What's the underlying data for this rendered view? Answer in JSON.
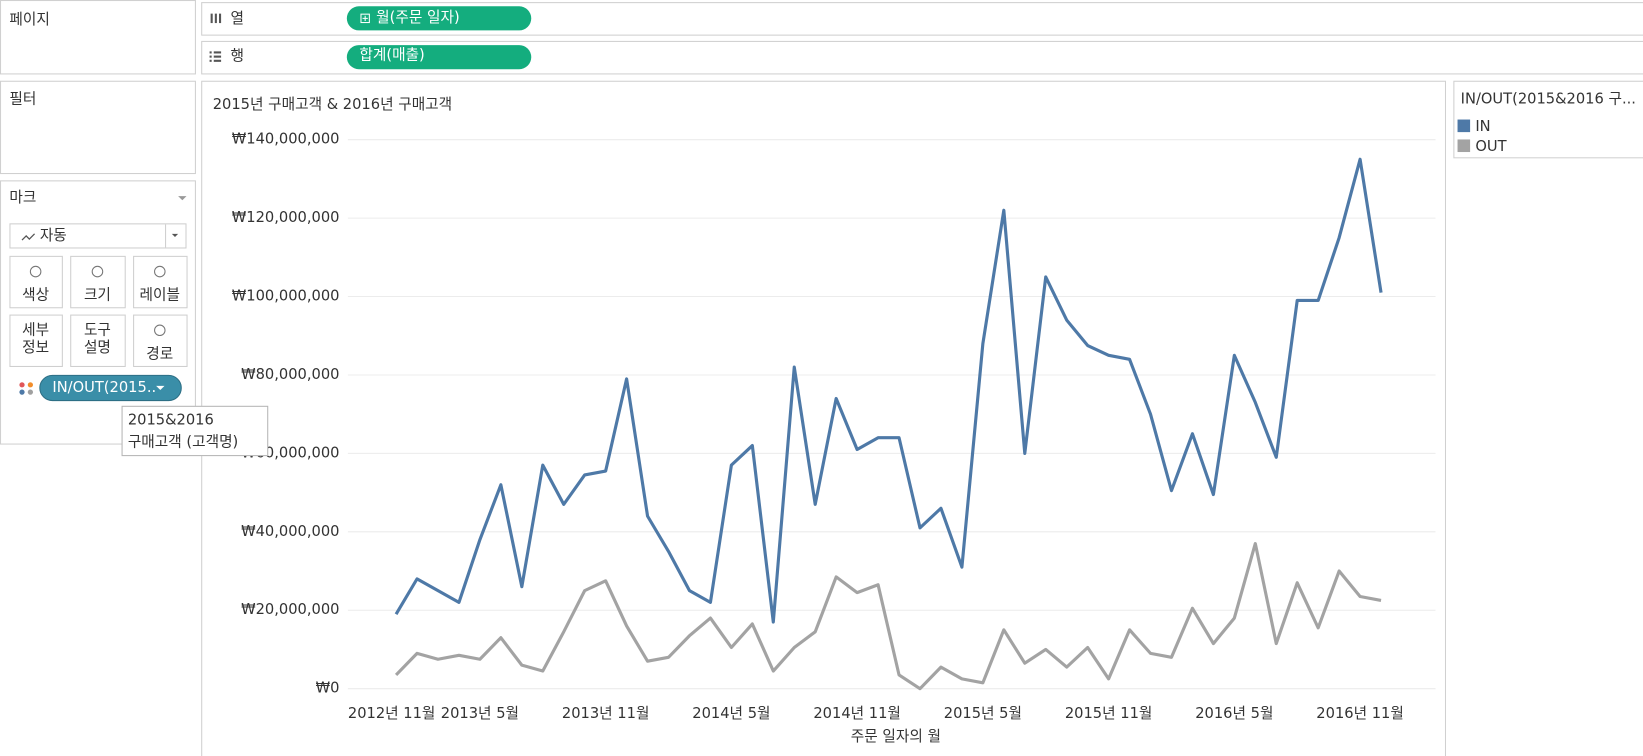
{
  "ui": {
    "pages_label": "페이지",
    "filters_label": "필터",
    "marks": {
      "title": "마크",
      "mark_type": "자동",
      "buttons": [
        [
          "색상"
        ],
        [
          "크기"
        ],
        [
          "레이블"
        ],
        [
          "세부",
          "정보"
        ],
        [
          "도구",
          "설명"
        ],
        [
          "경로"
        ]
      ],
      "pill": "IN/OUT(2015..",
      "tooltip": [
        "2015&2016",
        "구매고객 (고객명)"
      ]
    },
    "columns_shelf": {
      "label": "열",
      "pill": "월(주문 일자)"
    },
    "rows_shelf": {
      "label": "행",
      "pill": "합계(매출)"
    }
  },
  "chart_data": {
    "type": "line",
    "title": "2015년 구매고객 & 2016년 구매고객",
    "x_label": "주문 일자의 월",
    "legend_title": "IN/OUT(2015&2016 구...",
    "legend": "right",
    "categories": [
      "2012년 11월",
      null,
      null,
      null,
      null,
      null,
      "2013년 5월",
      null,
      null,
      null,
      null,
      null,
      "2013년 11월",
      null,
      null,
      null,
      null,
      null,
      "2014년 5월",
      null,
      null,
      null,
      null,
      null,
      "2014년 11월",
      null,
      null,
      null,
      null,
      null,
      "2015년 5월",
      null,
      null,
      null,
      null,
      null,
      "2015년 11월",
      null,
      null,
      null,
      null,
      null,
      "2016년 5월",
      null,
      null,
      null,
      null,
      null,
      "2016년 11월",
      null
    ],
    "series": [
      {
        "name": "IN",
        "color": "#4e79a7",
        "values": [
          null,
          null,
          19000000,
          28000000,
          25000000,
          22000000,
          38000000,
          52000000,
          26000000,
          57000000,
          47000000,
          54500000,
          55500000,
          79000000,
          44000000,
          35000000,
          25000000,
          22000000,
          57000000,
          62000000,
          17000000,
          82000000,
          47000000,
          74000000,
          61000000,
          64000000,
          64000000,
          41000000,
          46000000,
          31000000,
          88000000,
          122000000,
          60000000,
          105000000,
          94000000,
          87500000,
          85000000,
          84000000,
          70000000,
          50500000,
          65000000,
          49500000,
          85000000,
          73000000,
          59000000,
          99000000,
          99000000,
          115000000,
          135000000,
          101000000
        ]
      },
      {
        "name": "OUT",
        "color": "#a3a3a3",
        "values": [
          null,
          null,
          3500000,
          9000000,
          7500000,
          8500000,
          7500000,
          13000000,
          6000000,
          4500000,
          14500000,
          25000000,
          27500000,
          16000000,
          7000000,
          8000000,
          13500000,
          18000000,
          10500000,
          16500000,
          4500000,
          10500000,
          14500000,
          28500000,
          24500000,
          26500000,
          3500000,
          0,
          5500000,
          2500000,
          1500000,
          15000000,
          6500000,
          10000000,
          5500000,
          10500000,
          2500000,
          15000000,
          9000000,
          8000000,
          20500000,
          11500000,
          18000000,
          37000000,
          11500000,
          27000000,
          15500000,
          30000000,
          23500000,
          22500000
        ]
      }
    ],
    "ylim": [
      -3000000,
      143000000
    ],
    "yticks": [
      {
        "value": 0,
        "label": "₩0"
      },
      {
        "value": 20000000,
        "label": "₩20,000,000"
      },
      {
        "value": 40000000,
        "label": "₩40,000,000"
      },
      {
        "value": 60000000,
        "label": "₩60,000,000"
      },
      {
        "value": 80000000,
        "label": "₩80,000,000"
      },
      {
        "value": 100000000,
        "label": "₩100,000,000"
      },
      {
        "value": 120000000,
        "label": "₩120,000,000"
      },
      {
        "value": 140000000,
        "label": "₩140,000,000"
      }
    ],
    "grid": true
  }
}
